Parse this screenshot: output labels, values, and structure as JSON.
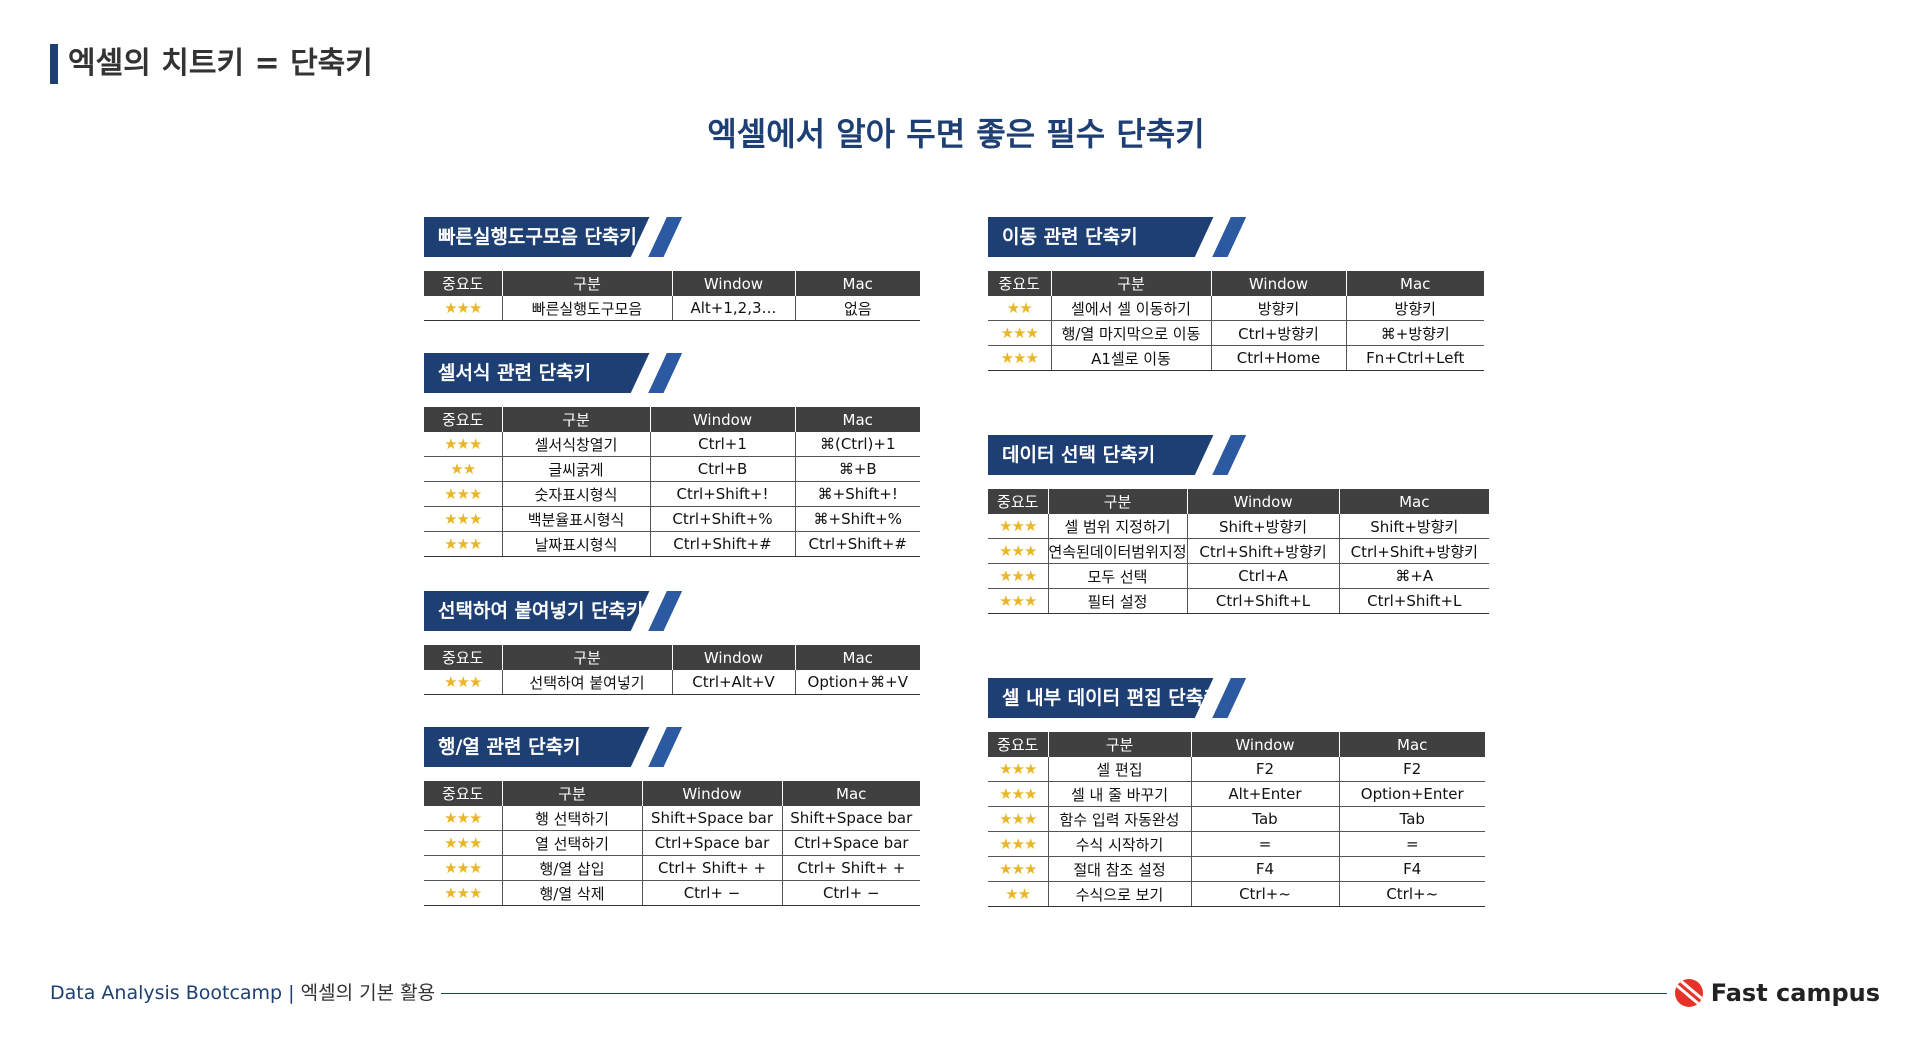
{
  "page_title": "엑셀의 치트키 = 단축키",
  "main_heading": "엑셀에서 알아 두면 좋은 필수 단축키",
  "headers": [
    "중요도",
    "구분",
    "Window",
    "Mac"
  ],
  "sections": {
    "quick_access": {
      "title": "빠른실행도구모음 단축키",
      "rows": [
        [
          "★★★",
          "빠른실행도구모음",
          "Alt+1,2,3…",
          "없음"
        ]
      ]
    },
    "cell_format": {
      "title": "셀서식 관련 단축키",
      "rows": [
        [
          "★★★",
          "셀서식창열기",
          "Ctrl+1",
          "⌘(Ctrl)+1"
        ],
        [
          "★★",
          "글씨굵게",
          "Ctrl+B",
          "⌘+B"
        ],
        [
          "★★★",
          "숫자표시형식",
          "Ctrl+Shift+!",
          "⌘+Shift+!"
        ],
        [
          "★★★",
          "백분율표시형식",
          "Ctrl+Shift+%",
          "⌘+Shift+%"
        ],
        [
          "★★★",
          "날짜표시형식",
          "Ctrl+Shift+#",
          "Ctrl+Shift+#"
        ]
      ]
    },
    "paste_special": {
      "title": "선택하여 붙여넣기 단축키",
      "rows": [
        [
          "★★★",
          "선택하여 붙여넣기",
          "Ctrl+Alt+V",
          "Option+⌘+V"
        ]
      ]
    },
    "row_col": {
      "title": "행/열 관련 단축키",
      "rows": [
        [
          "★★★",
          "행 선택하기",
          "Shift+Space bar",
          "Shift+Space bar"
        ],
        [
          "★★★",
          "열 선택하기",
          "Ctrl+Space bar",
          "Ctrl+Space bar"
        ],
        [
          "★★★",
          "행/열 삽입",
          "Ctrl+ Shift+ +",
          "Ctrl+ Shift+ +"
        ],
        [
          "★★★",
          "행/열 삭제",
          "Ctrl+ −",
          "Ctrl+ −"
        ]
      ]
    },
    "navigation": {
      "title": "이동 관련 단축키",
      "rows": [
        [
          "★★",
          "셀에서 셀 이동하기",
          "방향키",
          "방향키"
        ],
        [
          "★★★",
          "행/열 마지막으로 이동",
          "Ctrl+방향키",
          "⌘+방향키"
        ],
        [
          "★★★",
          "A1셀로 이동",
          "Ctrl+Home",
          "Fn+Ctrl+Left"
        ]
      ]
    },
    "data_select": {
      "title": "데이터 선택 단축키",
      "rows": [
        [
          "★★★",
          "셀 범위 지정하기",
          "Shift+방향키",
          "Shift+방향키"
        ],
        [
          "★★★",
          "연속된데이터범위지정",
          "Ctrl+Shift+방향키",
          "Ctrl+Shift+방향키"
        ],
        [
          "★★★",
          "모두 선택",
          "Ctrl+A",
          "⌘+A"
        ],
        [
          "★★★",
          "필터 설정",
          "Ctrl+Shift+L",
          "Ctrl+Shift+L"
        ]
      ]
    },
    "cell_edit": {
      "title": "셀 내부 데이터 편집 단축키",
      "rows": [
        [
          "★★★",
          "셀 편집",
          "F2",
          "F2"
        ],
        [
          "★★★",
          "셀 내 줄 바꾸기",
          "Alt+Enter",
          "Option+Enter"
        ],
        [
          "★★★",
          "함수 입력 자동완성",
          "Tab",
          "Tab"
        ],
        [
          "★★★",
          "수식 시작하기",
          "=",
          "="
        ],
        [
          "★★★",
          "절대 참조 설정",
          "F4",
          "F4"
        ],
        [
          "★★",
          "수식으로 보기",
          "Ctrl+~",
          "Ctrl+~"
        ]
      ]
    }
  },
  "footer": {
    "course": "Data Analysis Bootcamp",
    "separator": " | ",
    "chapter": "엑셀의 기본 활용",
    "brand": "Fast campus"
  }
}
